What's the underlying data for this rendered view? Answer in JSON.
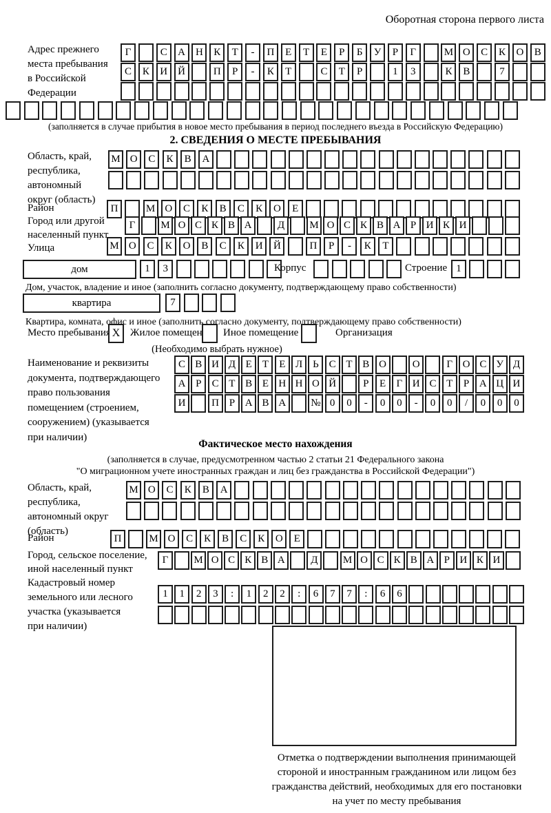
{
  "header": {
    "note": "Оборотная сторона первого листа"
  },
  "prev_address": {
    "label_lines": [
      "Адрес прежнего",
      "места пребывания",
      "в Российской",
      "Федерации"
    ],
    "row1": {
      "len": 24,
      "text": "Г САНКТ-ПЕТЕРБУРГ МОСКОВ"
    },
    "row2": {
      "len": 24,
      "text": "СКИЙ ПР-КТ СТР 13 КВ 7"
    },
    "row3": {
      "len": 24,
      "text": ""
    },
    "row4": {
      "len": 28,
      "text": ""
    },
    "note": "(заполняется в случае прибытия в новое место пребывания в период последнего въезда в Российскую Федерацию)"
  },
  "section2": {
    "title": "2. СВЕДЕНИЯ О МЕСТЕ ПРЕБЫВАНИЯ",
    "region": {
      "label_lines": [
        "Область, край,",
        "республика,",
        "автономный",
        "округ (область)"
      ],
      "row1": {
        "len": 23,
        "text": "МОСКВА"
      },
      "row2": {
        "len": 23,
        "text": ""
      }
    },
    "district": {
      "label": "Район",
      "row": {
        "len": 23,
        "text": "П МОСКВСКОЕ"
      }
    },
    "city": {
      "label_lines": [
        "Город или другой",
        "населенный пункт"
      ],
      "row": {
        "len": 24,
        "text": "Г МОСКВА Д МОСКВАРИКИ"
      }
    },
    "street": {
      "label": "Улица",
      "row": {
        "len": 23,
        "text": "МОСКОВСКИЙ ПР-КТ"
      }
    },
    "house": {
      "field_label": "дом",
      "row": {
        "len": 8,
        "text": "13"
      },
      "korpus_label": "Корпус",
      "korpus_row": {
        "len": 5,
        "text": ""
      },
      "stroenie_label": "Строение",
      "stroenie_row": {
        "len": 4,
        "text": "1"
      },
      "note": "Дом, участок, владение и иное (заполнить согласно документу, подтверждающему право собственности)"
    },
    "apartment": {
      "field_label": "квартира",
      "row": {
        "len": 4,
        "text": "7"
      },
      "note": "Квартира, комната, офис и иное (заполнить согласно документу, подтверждающему право собственности)"
    },
    "stay_type": {
      "label": "Место пребывания:",
      "options": [
        {
          "mark": "X",
          "label": "Жилое помещение"
        },
        {
          "mark": "",
          "label": "Иное помещение"
        },
        {
          "mark": "",
          "label": "Организация"
        }
      ],
      "note": "(Необходимо выбрать нужное)"
    },
    "document": {
      "label_lines": [
        "Наименование и реквизиты",
        "документа, подтверждающего",
        "право пользования",
        "помещением (строением,",
        "сооружением) (указывается",
        "при наличии)"
      ],
      "row1": {
        "len": 21,
        "text": "СВИДЕТЕЛЬСТВО О ГОСУД"
      },
      "row2": {
        "len": 21,
        "text": "АРСТВЕННОЙ РЕГИСТРАЦИ"
      },
      "row3": {
        "len": 21,
        "text": "И ПРАВА №00-00-00/000"
      }
    }
  },
  "actual_location": {
    "title": "Фактическое место нахождения",
    "note_lines": [
      "(заполняется в случае, предусмотренном частью 2 статьи 21 Федерального закона",
      "\"О миграционном учете иностранных граждан и лиц без гражданства в Российской Федерации\")"
    ],
    "region": {
      "label_lines": [
        "Область, край,",
        "республика,",
        "автономный округ",
        "(область)"
      ],
      "row1": {
        "len": 22,
        "text": "МОСКВА"
      },
      "row2": {
        "len": 22,
        "text": ""
      }
    },
    "district": {
      "label": "Район",
      "row": {
        "len": 23,
        "text": "П МОСКВСКОЕ"
      }
    },
    "city": {
      "label_lines": [
        "Город, сельское поселение,",
        "иной населенный пункт"
      ],
      "row": {
        "len": 22,
        "text": "Г МОСКВА Д МОСКВАРИКИ"
      }
    },
    "cadastral": {
      "label_lines": [
        "Кадастровый номер",
        "земельного или лесного",
        "участка (указывается",
        "при наличии)"
      ],
      "row1": {
        "len": 22,
        "text": "1123:122:677:66"
      },
      "row2": {
        "len": 22,
        "text": ""
      }
    },
    "stamp_note_lines": [
      "Отметка о подтверждении выполнения принимающей",
      "стороной и иностранным гражданином или лицом без",
      "гражданства действий, необходимых для его постановки",
      "на учет по месту пребывания"
    ]
  }
}
